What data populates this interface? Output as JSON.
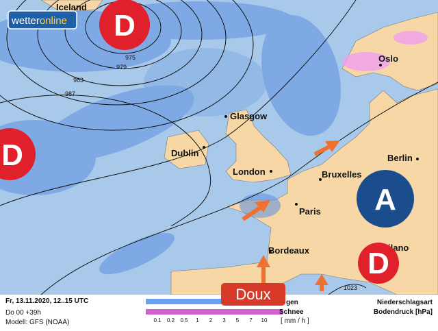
{
  "logo": {
    "part1": "wetter",
    "part2": "online"
  },
  "places": {
    "iceland": "Iceland",
    "glasgow": "Glasgow",
    "dublin": "Dublin",
    "london": "London",
    "bruxelles": "Bruxelles",
    "berlin": "Berlin",
    "oslo": "Oslo",
    "paris": "Paris",
    "bordeaux": "Bordeaux",
    "milano": "ilano"
  },
  "pressure_centers": {
    "low_north": "D",
    "low_west": "D",
    "high_east": "A",
    "low_south": "D"
  },
  "isobars": [
    "975",
    "979",
    "983",
    "987",
    "1023"
  ],
  "annotation": "Doux",
  "footer": {
    "date": "Fr, 13.11.2020, 12..15 UTC",
    "run": "Do 00 +39h",
    "model": "Modell: GFS (NOAA)",
    "legend_rain": "gen",
    "legend_snow": "Schnee",
    "scale": [
      "0.1",
      "0.2",
      "0.5",
      "1",
      "2",
      "3",
      "5",
      "7",
      "10"
    ],
    "unit": "[ mm / h ]",
    "right_line1": "Niederschlagsart",
    "right_line2": "Bodendruck [hPa]"
  }
}
